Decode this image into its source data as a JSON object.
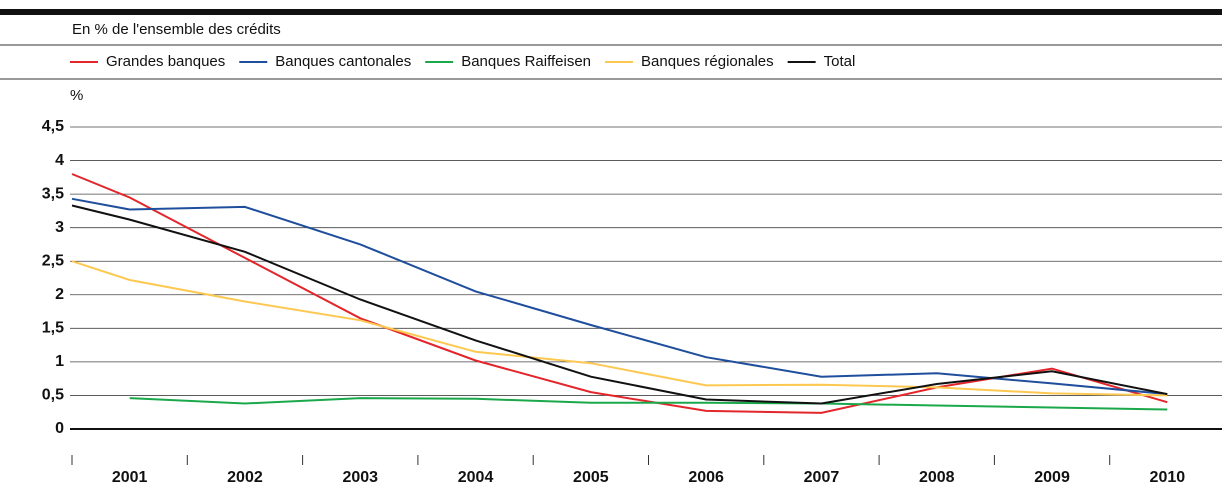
{
  "chart_data": {
    "type": "line",
    "subtitle": "En % de l'ensemble des crédits",
    "y_label": "%",
    "x": [
      2000.5,
      2001,
      2002,
      2003,
      2004,
      2005,
      2006,
      2007,
      2008,
      2009,
      2010
    ],
    "xlim": [
      2000.5,
      2010.5
    ],
    "xticks": [
      2001,
      2002,
      2003,
      2004,
      2005,
      2006,
      2007,
      2008,
      2009,
      2010
    ],
    "ylim": [
      -0.75,
      4.5
    ],
    "yticks": [
      0,
      {
        "value": 0.5,
        "label": "0,5"
      },
      1,
      {
        "value": 1.5,
        "label": "1,5"
      },
      2,
      {
        "value": 2.5,
        "label": "2,5"
      },
      3,
      {
        "value": 3.5,
        "label": "3,5"
      },
      4,
      {
        "value": 4.5,
        "label": "4,5"
      }
    ],
    "grid": true,
    "series": [
      {
        "name": "Grandes banques",
        "color": "#e3262b",
        "values": [
          3.8,
          3.45,
          2.55,
          1.65,
          1.02,
          0.55,
          0.27,
          0.24,
          0.62,
          0.9,
          0.4
        ]
      },
      {
        "name": "Banques cantonales",
        "color": "#1f4e9c",
        "values": [
          3.43,
          3.27,
          3.31,
          2.75,
          2.05,
          1.55,
          1.07,
          0.78,
          0.83,
          0.68,
          0.52
        ]
      },
      {
        "name": "Banques Raiffeisen",
        "color": "#1aa84a",
        "values": [
          null,
          0.46,
          0.38,
          0.46,
          0.45,
          0.39,
          0.39,
          0.38,
          0.35,
          0.32,
          0.29
        ]
      },
      {
        "name": "Banques régionales",
        "color": "#fdc850",
        "values": [
          2.5,
          2.22,
          1.9,
          1.62,
          1.15,
          0.98,
          0.65,
          0.66,
          0.62,
          0.53,
          0.5
        ]
      },
      {
        "name": "Total",
        "color": "#111111",
        "values": [
          3.33,
          3.12,
          2.64,
          1.93,
          1.32,
          0.78,
          0.44,
          0.38,
          0.67,
          0.86,
          0.52
        ]
      }
    ]
  }
}
